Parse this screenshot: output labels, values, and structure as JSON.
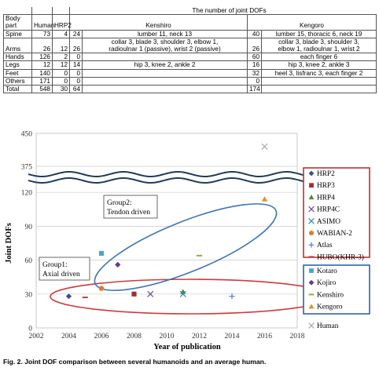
{
  "table": {
    "title": "The number of joint DOFs",
    "headers": {
      "body_part": "Body part",
      "human": "Human",
      "hrp2": "HRP2",
      "kenshiro": "Kenshiro",
      "kengoro": "Kengoro"
    },
    "rows": [
      {
        "part": "Spine",
        "human": "73",
        "hrp2": "4",
        "ken_n": "24",
        "ken_d": [
          "lumber 11, neck 13"
        ],
        "keng_n": "40",
        "keng_d": [
          "lumber 15, thoracic 6, neck 19"
        ]
      },
      {
        "part": "Arms",
        "human": "26",
        "hrp2": "12",
        "ken_n": "26",
        "ken_d": [
          "collar 3, blade 3, shoulder 3, elbow 1,",
          "radioulnar 1 (passive), wrist 2 (passive)"
        ],
        "keng_n": "26",
        "keng_d": [
          "collar 3, blade 3, shoulder 3,",
          "elbow 1, radioulnar 1, wrist 2"
        ]
      },
      {
        "part": "Hands",
        "human": "126",
        "hrp2": "2",
        "ken_n": "0",
        "ken_d": [
          ""
        ],
        "keng_n": "60",
        "keng_d": [
          "each finger 6"
        ]
      },
      {
        "part": "Legs",
        "human": "12",
        "hrp2": "12",
        "ken_n": "14",
        "ken_d": [
          "hip 3, knee 2, ankle 2"
        ],
        "keng_n": "16",
        "keng_d": [
          "hip 3, knee 2, ankle 3"
        ]
      },
      {
        "part": "Feet",
        "human": "140",
        "hrp2": "0",
        "ken_n": "0",
        "ken_d": [
          ""
        ],
        "keng_n": "32",
        "keng_d": [
          "heel 3, lisfranc 3, each finger 2"
        ]
      },
      {
        "part": "Others",
        "human": "171",
        "hrp2": "0",
        "ken_n": "0",
        "ken_d": [
          ""
        ],
        "keng_n": "0",
        "keng_d": [
          ""
        ]
      },
      {
        "part": "Total",
        "human": "548",
        "hrp2": "30",
        "ken_n": "64",
        "ken_d": [
          ""
        ],
        "keng_n": "174",
        "keng_d": [
          ""
        ]
      }
    ]
  },
  "chart_data": {
    "type": "scatter",
    "xlabel": "Year of publication",
    "ylabel": "Joint DOFs",
    "x_ticks": [
      2002,
      2004,
      2006,
      2008,
      2010,
      2012,
      2014,
      2016,
      2018
    ],
    "y_tick_labels": [
      "0",
      "30",
      "60",
      "90",
      "120",
      "375",
      "450"
    ],
    "y_axis_break": {
      "lower_range": [
        0,
        130
      ],
      "upper_range": [
        350,
        450
      ]
    },
    "series": [
      {
        "name": "HRP2",
        "marker": "diamond",
        "color": "#3a4e9a",
        "x": 2004,
        "y": 28
      },
      {
        "name": "HRP3",
        "marker": "square",
        "color": "#a03030",
        "x": 2008,
        "y": 30
      },
      {
        "name": "HRP4",
        "marker": "triangle",
        "color": "#4a8a3a",
        "x": 2011,
        "y": 32
      },
      {
        "name": "HRP4C",
        "marker": "x",
        "color": "#6a4a9a",
        "x": 2009,
        "y": 30
      },
      {
        "name": "ASIMO",
        "marker": "x",
        "color": "#2a8aa8",
        "x": 2011,
        "y": 30
      },
      {
        "name": "WABIAN-2",
        "marker": "circle",
        "color": "#e07a2a",
        "x": 2006,
        "y": 35
      },
      {
        "name": "Atlas",
        "marker": "plus",
        "color": "#5a7ad0",
        "x": 2014,
        "y": 28
      },
      {
        "name": "HUBO(KHR-3)",
        "marker": "dash",
        "color": "#c04040",
        "x": 2005,
        "y": 27
      },
      {
        "name": "Kotaro",
        "marker": "square",
        "color": "#40a8d0",
        "x": 2006,
        "y": 66
      },
      {
        "name": "Kojiro",
        "marker": "diamond",
        "color": "#6a3a8a",
        "x": 2007,
        "y": 56
      },
      {
        "name": "Kenshiro",
        "marker": "dash",
        "color": "#8ab040",
        "x": 2012,
        "y": 64
      },
      {
        "name": "Kengoro",
        "marker": "triangle",
        "color": "#f08a2a",
        "x": 2016,
        "y": 114
      },
      {
        "name": "Human",
        "marker": "x",
        "color": "#a8a8a8",
        "x": 2016,
        "y": 420
      }
    ],
    "legend_groups": [
      {
        "border_color": "#c03030",
        "items": [
          "HRP2",
          "HRP3",
          "HRP4",
          "HRP4C",
          "ASIMO",
          "WABIAN-2",
          "Atlas",
          "HUBO(KHR-3)"
        ]
      },
      {
        "border_color": "#3060b0",
        "items": [
          "Kotaro",
          "Kojiro",
          "Kenshiro",
          "Kengoro"
        ]
      },
      {
        "border_color": "",
        "items": [
          "Human"
        ]
      }
    ],
    "annotations": {
      "group2": [
        "Group2:",
        "Tendon driven"
      ],
      "group1": [
        "Group1:",
        "Axial driven"
      ]
    }
  },
  "caption": "Fig. 2. Joint DOF comparison between several humanoids and an average human."
}
